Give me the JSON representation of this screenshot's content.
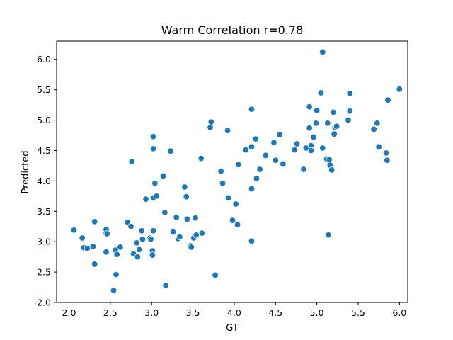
{
  "chart_data": {
    "type": "scatter",
    "title": "Warm Correlation r=0.78",
    "xlabel": "GT",
    "ylabel": "Predicted",
    "xlim": [
      1.85,
      6.1
    ],
    "ylim": [
      2.0,
      6.3
    ],
    "xticks": [
      2.0,
      2.5,
      3.0,
      3.5,
      4.0,
      4.5,
      5.0,
      5.5,
      6.0
    ],
    "yticks": [
      2.0,
      2.5,
      3.0,
      3.5,
      4.0,
      4.5,
      5.0,
      5.5,
      6.0
    ],
    "xtick_labels": [
      "2.0",
      "2.5",
      "3.0",
      "3.5",
      "4.0",
      "4.5",
      "5.0",
      "5.5",
      "6.0"
    ],
    "ytick_labels": [
      "2.0",
      "2.5",
      "3.0",
      "3.5",
      "4.0",
      "4.5",
      "5.0",
      "5.5",
      "6.0"
    ],
    "grid": false,
    "marker_color": "#1f77b4",
    "points": [
      [
        2.06,
        3.19
      ],
      [
        2.16,
        3.06
      ],
      [
        2.18,
        2.9
      ],
      [
        2.22,
        2.89
      ],
      [
        2.29,
        2.92
      ],
      [
        2.31,
        3.33
      ],
      [
        2.31,
        2.63
      ],
      [
        2.44,
        3.15
      ],
      [
        2.45,
        3.2
      ],
      [
        2.45,
        2.83
      ],
      [
        2.46,
        3.13
      ],
      [
        2.54,
        2.2
      ],
      [
        2.56,
        2.86
      ],
      [
        2.57,
        2.46
      ],
      [
        2.58,
        2.79
      ],
      [
        2.62,
        2.91
      ],
      [
        2.71,
        3.32
      ],
      [
        2.75,
        3.25
      ],
      [
        2.76,
        4.32
      ],
      [
        2.78,
        2.8
      ],
      [
        2.82,
        2.98
      ],
      [
        2.83,
        2.75
      ],
      [
        2.85,
        2.87
      ],
      [
        2.88,
        3.18
      ],
      [
        2.89,
        3.04
      ],
      [
        2.93,
        3.7
      ],
      [
        2.98,
        3.06
      ],
      [
        2.99,
        3.04
      ],
      [
        3.01,
        2.85
      ],
      [
        3.01,
        2.78
      ],
      [
        3.02,
        3.18
      ],
      [
        3.02,
        3.72
      ],
      [
        3.02,
        4.53
      ],
      [
        3.02,
        4.73
      ],
      [
        3.04,
        3.96
      ],
      [
        3.06,
        3.75
      ],
      [
        3.14,
        4.08
      ],
      [
        3.16,
        3.48
      ],
      [
        3.17,
        2.28
      ],
      [
        3.23,
        4.49
      ],
      [
        3.26,
        3.16
      ],
      [
        3.3,
        3.4
      ],
      [
        3.32,
        3.05
      ],
      [
        3.34,
        3.08
      ],
      [
        3.4,
        3.9
      ],
      [
        3.42,
        3.74
      ],
      [
        3.43,
        3.37
      ],
      [
        3.47,
        2.93
      ],
      [
        3.48,
        2.91
      ],
      [
        3.51,
        3.06
      ],
      [
        3.53,
        3.39
      ],
      [
        3.54,
        3.11
      ],
      [
        3.6,
        4.37
      ],
      [
        3.61,
        3.14
      ],
      [
        3.71,
        4.88
      ],
      [
        3.72,
        4.97
      ],
      [
        3.77,
        2.45
      ],
      [
        3.84,
        4.16
      ],
      [
        3.86,
        3.96
      ],
      [
        3.92,
        4.83
      ],
      [
        3.93,
        3.72
      ],
      [
        3.98,
        3.35
      ],
      [
        4.02,
        3.62
      ],
      [
        4.04,
        3.28
      ],
      [
        4.05,
        4.27
      ],
      [
        4.14,
        4.51
      ],
      [
        4.21,
        4.56
      ],
      [
        4.21,
        5.18
      ],
      [
        4.21,
        3.87
      ],
      [
        4.21,
        3.01
      ],
      [
        4.26,
        4.69
      ],
      [
        4.27,
        4.04
      ],
      [
        4.31,
        4.19
      ],
      [
        4.38,
        4.42
      ],
      [
        4.48,
        4.63
      ],
      [
        4.5,
        4.34
      ],
      [
        4.55,
        4.76
      ],
      [
        4.59,
        4.28
      ],
      [
        4.73,
        4.51
      ],
      [
        4.76,
        4.61
      ],
      [
        4.84,
        4.19
      ],
      [
        4.87,
        4.54
      ],
      [
        4.91,
        4.87
      ],
      [
        4.91,
        5.22
      ],
      [
        4.93,
        4.58
      ],
      [
        4.93,
        4.5
      ],
      [
        4.96,
        4.72
      ],
      [
        4.99,
        4.95
      ],
      [
        5.0,
        5.16
      ],
      [
        5.05,
        5.45
      ],
      [
        5.07,
        4.54
      ],
      [
        5.07,
        6.12
      ],
      [
        5.12,
        4.36
      ],
      [
        5.13,
        4.95
      ],
      [
        5.14,
        3.11
      ],
      [
        5.15,
        4.35
      ],
      [
        5.16,
        4.26
      ],
      [
        5.18,
        4.18
      ],
      [
        5.2,
        5.13
      ],
      [
        5.21,
        4.77
      ],
      [
        5.22,
        4.88
      ],
      [
        5.24,
        4.9
      ],
      [
        5.38,
        5.0
      ],
      [
        5.4,
        5.15
      ],
      [
        5.4,
        5.44
      ],
      [
        5.69,
        4.85
      ],
      [
        5.73,
        4.95
      ],
      [
        5.75,
        4.56
      ],
      [
        5.84,
        4.46
      ],
      [
        5.85,
        4.34
      ],
      [
        5.86,
        5.33
      ],
      [
        6.0,
        5.51
      ]
    ]
  }
}
